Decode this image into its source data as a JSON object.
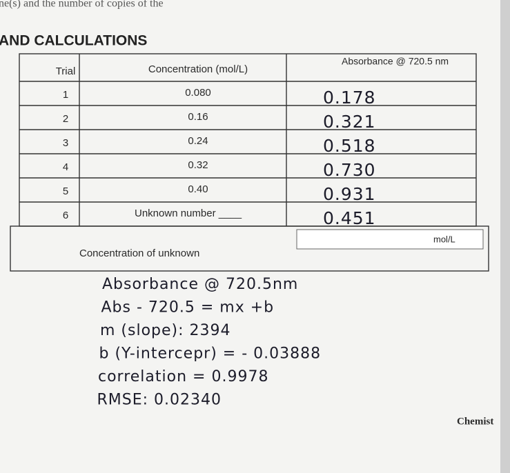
{
  "header": {
    "fragment": "ne(s) and the number of copies of the",
    "section_title": "AND CALCULATIONS"
  },
  "table": {
    "columns": [
      "Trial",
      "Concentration (mol/L)",
      "Absorbance @ 720.5 nm"
    ],
    "rows": [
      [
        "1",
        "0.080",
        "0.178"
      ],
      [
        "2",
        "0.16",
        "0.321"
      ],
      [
        "3",
        "0.24",
        "0.518"
      ],
      [
        "4",
        "0.32",
        "0.730"
      ],
      [
        "5",
        "0.40",
        "0.931"
      ],
      [
        "6",
        "Unknown number ____",
        "0.451"
      ]
    ]
  },
  "unknown": {
    "label": "Concentration of unknown",
    "unit": "mol/L"
  },
  "notes": [
    "Absorbance @ 720.5nm",
    "Abs - 720.5 = mx +b",
    "m (slope): 2394",
    "b (Y-intercepr) = - 0.03888",
    "correlation = 0.9978",
    "RMSE: 0.02340"
  ],
  "footer": {
    "fragment": "Chemist"
  }
}
